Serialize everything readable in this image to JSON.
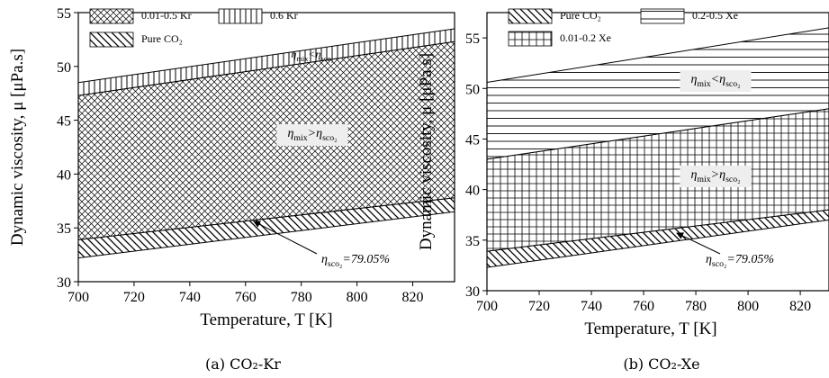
{
  "chart_data": [
    {
      "type": "band",
      "caption": "(a) CO₂-Kr",
      "x_label": "Temperature, T [K]",
      "y_label": "Dynamic viscosity, μ [μPa.s]",
      "x": [
        700,
        835
      ],
      "xlim": [
        700,
        835
      ],
      "xticks": [
        700,
        720,
        740,
        760,
        780,
        800,
        820
      ],
      "ylim": [
        30,
        55
      ],
      "yticks": [
        30,
        35,
        40,
        45,
        50,
        55
      ],
      "series": [
        {
          "name": "Pure CO₂",
          "pattern": "diagonal",
          "lower": [
            32.2,
            36.5
          ],
          "upper": [
            33.9,
            37.8
          ]
        },
        {
          "name": "0.01-0.5 Kr",
          "pattern": "crosshatch",
          "lower": [
            33.9,
            37.8
          ],
          "upper": [
            47.3,
            52.3
          ]
        },
        {
          "name": "0.6 Kr",
          "pattern": "vertical",
          "lower": [
            47.3,
            52.3
          ],
          "upper": [
            48.5,
            53.5
          ]
        }
      ],
      "annotations": [
        {
          "parts": [
            {
              "text": "η"
            },
            {
              "text": "mix",
              "sub": true
            },
            {
              "text": "<η"
            },
            {
              "text": "sco₂",
              "sub": true
            }
          ]
        },
        {
          "boxed": true,
          "parts": [
            {
              "text": "η"
            },
            {
              "text": "mix",
              "sub": true
            },
            {
              "text": ">η"
            },
            {
              "text": "sco₂",
              "sub": true
            }
          ]
        },
        {
          "arrow": true,
          "parts": [
            {
              "text": "η"
            },
            {
              "text": "sco₂",
              "sub": true
            },
            {
              "text": "=79.05%"
            }
          ]
        }
      ]
    },
    {
      "type": "band",
      "caption": "(b) CO₂-Xe",
      "x_label": "Temperature, T [K]",
      "y_label": "Dynamic viscosity, μ [μPa.s]",
      "x": [
        700,
        831
      ],
      "xlim": [
        700,
        831
      ],
      "xticks": [
        700,
        720,
        740,
        760,
        780,
        800,
        820
      ],
      "ylim": [
        30,
        57.5
      ],
      "yticks": [
        30,
        35,
        40,
        45,
        50,
        55
      ],
      "series": [
        {
          "name": "Pure CO₂",
          "pattern": "diagonal",
          "lower": [
            32.3,
            37.0
          ],
          "upper": [
            33.9,
            38.0
          ]
        },
        {
          "name": "0.01-0.2 Xe",
          "pattern": "grid",
          "lower": [
            33.9,
            38.0
          ],
          "upper": [
            43.0,
            48.0
          ]
        },
        {
          "name": "0.2-0.5 Xe",
          "pattern": "horizontal",
          "lower": [
            43.0,
            48.0
          ],
          "upper": [
            50.6,
            56.0
          ]
        }
      ],
      "annotations": [
        {
          "boxed": true,
          "parts": [
            {
              "text": "η"
            },
            {
              "text": "mix",
              "sub": true
            },
            {
              "text": "<η"
            },
            {
              "text": "sco₂",
              "sub": true
            }
          ]
        },
        {
          "boxed": true,
          "parts": [
            {
              "text": "η"
            },
            {
              "text": "mix",
              "sub": true
            },
            {
              "text": ">η"
            },
            {
              "text": "sco₂",
              "sub": true
            }
          ]
        },
        {
          "arrow": true,
          "parts": [
            {
              "text": "η"
            },
            {
              "text": "sco₂",
              "sub": true
            },
            {
              "text": "=79.05%"
            }
          ]
        }
      ]
    }
  ]
}
